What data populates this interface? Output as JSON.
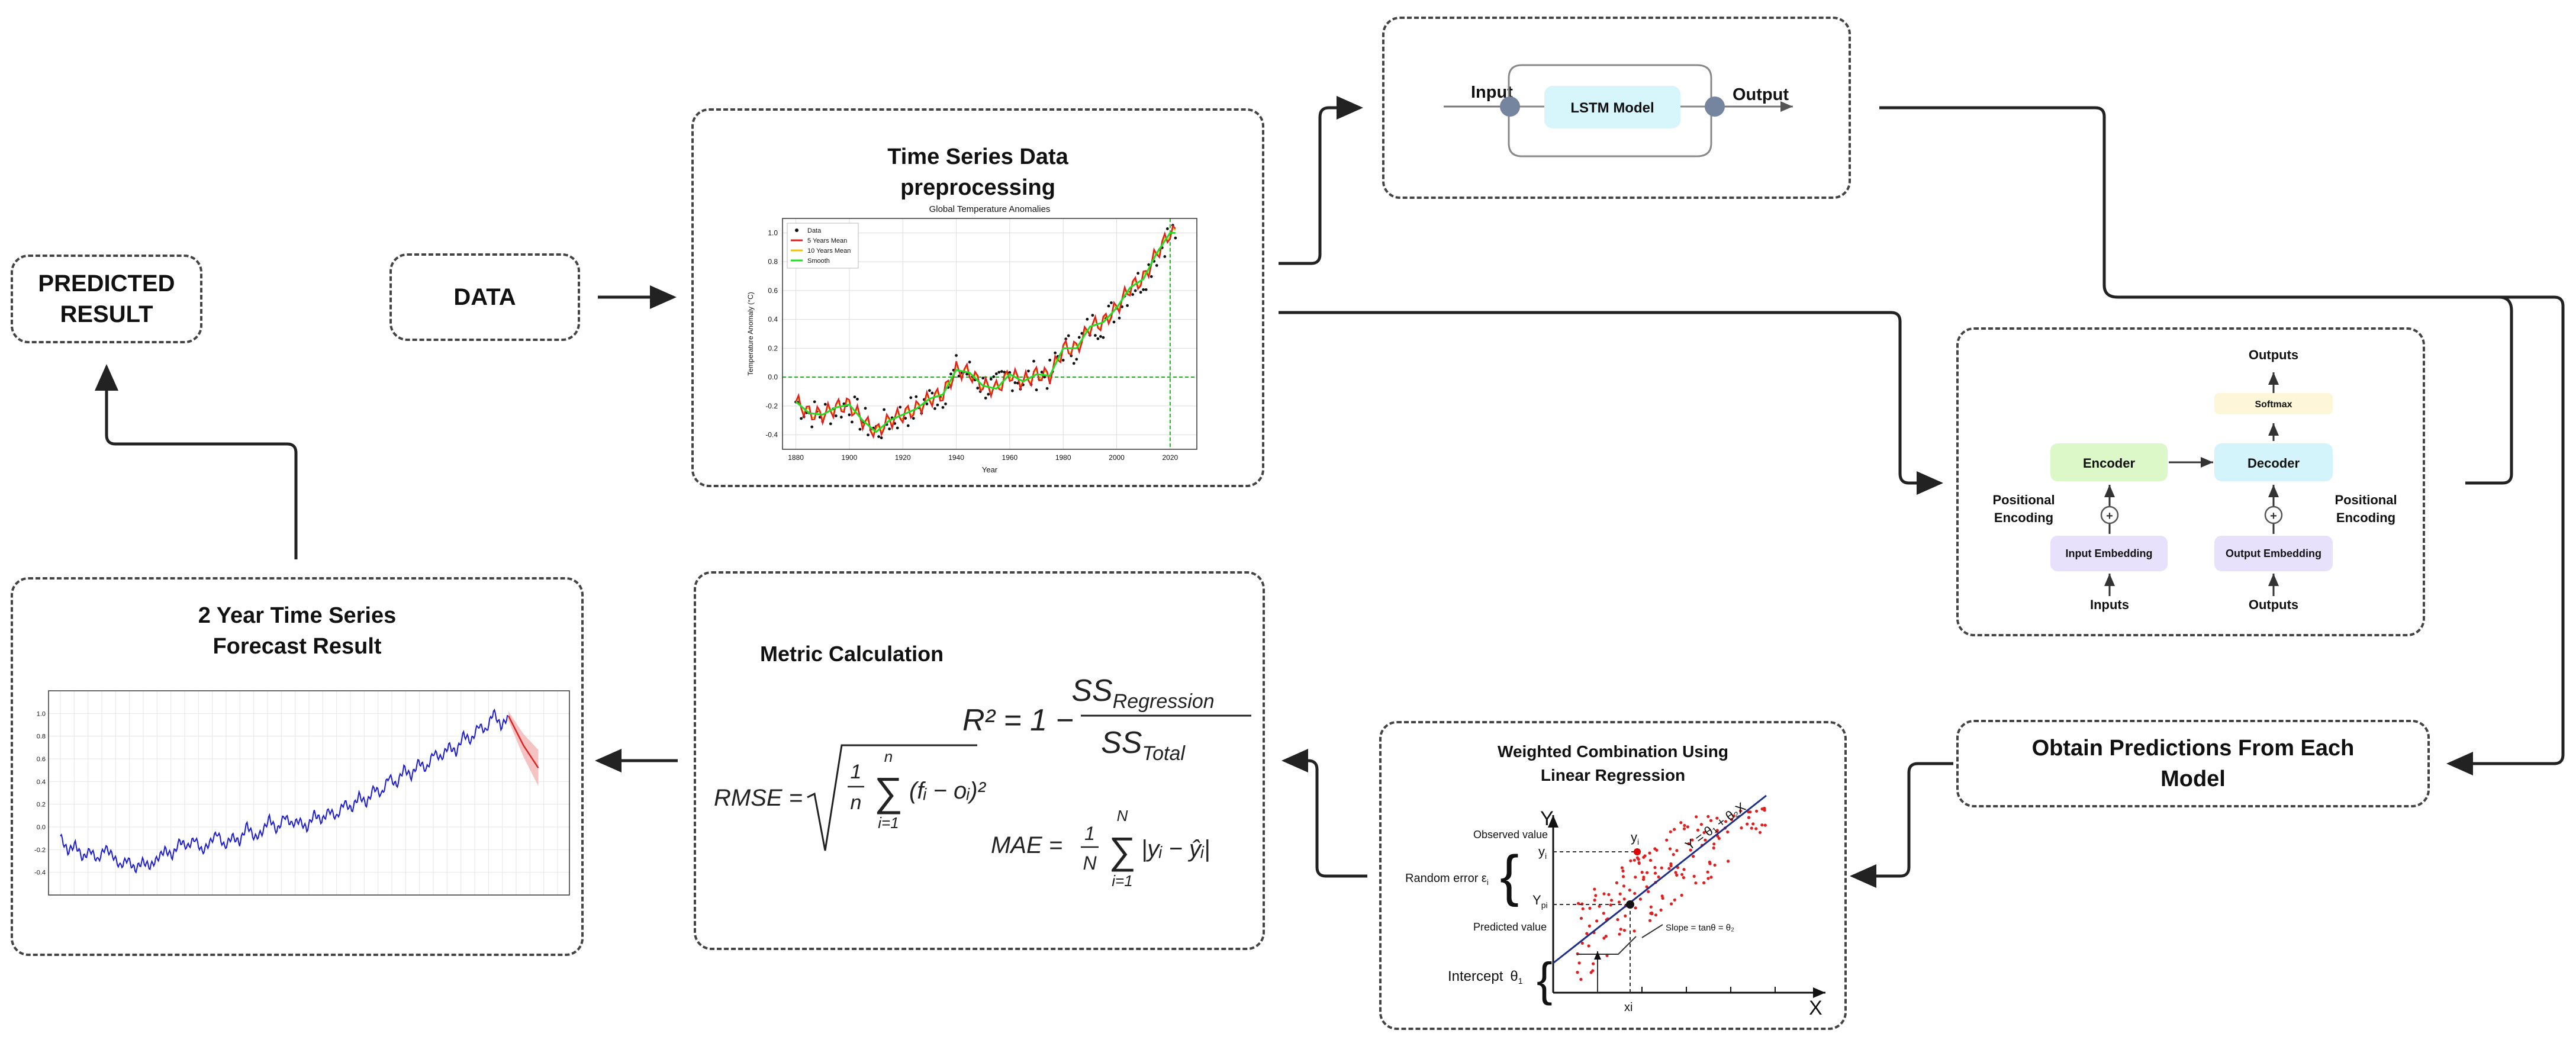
{
  "boxes": {
    "predicted_result": {
      "line1": "PREDICTED",
      "line2": "RESULT"
    },
    "data": {
      "label": "DATA"
    },
    "preprocessing": {
      "title_line1": "Time Series Data",
      "title_line2": "preprocessing"
    },
    "lstm": {
      "input": "Input",
      "output": "Output",
      "model": "LSTM Model"
    },
    "transformer": {
      "outputs_top": "Outputs",
      "softmax": "Softmax",
      "encoder": "Encoder",
      "decoder": "Decoder",
      "pos_enc_left_1": "Positional",
      "pos_enc_left_2": "Encoding",
      "pos_enc_right_1": "Positional",
      "pos_enc_right_2": "Encoding",
      "input_embedding": "Input Embedding",
      "output_embedding": "Output Embedding",
      "inputs": "Inputs",
      "outputs_bottom": "Outputs"
    },
    "obtain": {
      "line1": "Obtain Predictions From Each",
      "line2": "Model"
    },
    "regression": {
      "title_line1": "Weighted Combination Using",
      "title_line2": "Linear Regression",
      "axis_y": "Y",
      "axis_x": "X",
      "observed_value": "Observed value",
      "random_error": "Random error ε",
      "random_error_sub": "i",
      "predicted_value": "Predicted value",
      "intercept": "Intercept",
      "intercept_symbol": "θ",
      "intercept_sub": "1",
      "yi": "y",
      "yi_sub": "i",
      "ypi": "Y",
      "ypi_sub": "pi",
      "xi": "xi",
      "equation": "Y = θ₁ + θ₂X",
      "slope": "Slope = tanθ = θ₂"
    },
    "metric": {
      "title": "Metric Calculation",
      "r2_left": "R² = 1 −",
      "r2_num": "SS",
      "r2_num_sub": "Regression",
      "r2_den": "SS",
      "r2_den_sub": "Total",
      "rmse_label": "RMSE =",
      "rmse_frac_num": "1",
      "rmse_frac_den": "n",
      "rmse_sum_top": "n",
      "rmse_sum_bottom": "i=1",
      "rmse_body": "(fᵢ − oᵢ)²",
      "mae_label": "MAE =",
      "mae_frac_num": "1",
      "mae_frac_den": "N",
      "mae_sum_top": "N",
      "mae_sum_bottom": "i=1",
      "mae_body": "|yᵢ − ŷᵢ|"
    },
    "forecast": {
      "title_line1": "2 Year Time Series",
      "title_line2": "Forecast Result"
    }
  },
  "chart_data": [
    {
      "type": "line",
      "title": "Global Temperature Anomalies",
      "xlabel": "Year",
      "ylabel": "Temperature Anomaly (°C)",
      "xlim": [
        1875,
        2030
      ],
      "ylim": [
        -0.5,
        1.1
      ],
      "x_ticks": [
        "1880",
        "1900",
        "1920",
        "1940",
        "1960",
        "1980",
        "2000",
        "2020"
      ],
      "y_ticks": [
        "-0.4",
        "-0.2",
        "0.0",
        "0.2",
        "0.4",
        "0.6",
        "0.8",
        "1.0"
      ],
      "grid": true,
      "legend_position": "top-left",
      "legend": [
        "Data",
        "5 Years Mean",
        "10 Years Mean",
        "Smooth"
      ],
      "series": [
        {
          "name": "Smooth",
          "x": [
            1880,
            1885,
            1890,
            1895,
            1900,
            1905,
            1910,
            1915,
            1920,
            1925,
            1930,
            1935,
            1940,
            1945,
            1950,
            1955,
            1960,
            1965,
            1970,
            1975,
            1980,
            1985,
            1990,
            1995,
            2000,
            2005,
            2010,
            2015,
            2020
          ],
          "values": [
            -0.17,
            -0.25,
            -0.26,
            -0.21,
            -0.19,
            -0.3,
            -0.38,
            -0.3,
            -0.26,
            -0.22,
            -0.15,
            -0.12,
            0.05,
            0.03,
            -0.06,
            -0.08,
            0.02,
            -0.03,
            0.02,
            0.01,
            0.2,
            0.2,
            0.35,
            0.38,
            0.48,
            0.62,
            0.68,
            0.86,
            1.0
          ]
        }
      ],
      "annotations": [
        "dashed green horizontal line at 0.0",
        "dashed green vertical line at 2020"
      ]
    },
    {
      "type": "line",
      "title": "",
      "ylim": [
        -0.6,
        1.2
      ],
      "y_ticks": [
        "-0.4",
        "-0.2",
        "0.0",
        "0.2",
        "0.4",
        "0.6",
        "0.8",
        "1.0"
      ],
      "grid": true,
      "series": [
        {
          "name": "",
          "values": [
            -0.08,
            -0.22,
            -0.15,
            -0.28,
            -0.2,
            -0.3,
            -0.18,
            -0.25,
            -0.35,
            -0.28,
            -0.38,
            -0.3,
            -0.35,
            -0.28,
            -0.2,
            -0.26,
            -0.12,
            -0.18,
            -0.1,
            -0.22,
            -0.14,
            -0.05,
            -0.18,
            -0.08,
            -0.14,
            0.02,
            -0.1,
            -0.05,
            0.08,
            -0.04,
            0.1,
            0.02,
            0.06,
            -0.02,
            0.12,
            0.05,
            0.15,
            0.08,
            0.22,
            0.15,
            0.28,
            0.2,
            0.35,
            0.28,
            0.45,
            0.36,
            0.52,
            0.44,
            0.58,
            0.5,
            0.66,
            0.6,
            0.72,
            0.65,
            0.82,
            0.75,
            0.9,
            0.84,
            1.02,
            0.88,
            0.98
          ]
        },
        {
          "name": "",
          "values": [
            0.98,
            0.85,
            0.72,
            0.62,
            0.52
          ]
        }
      ]
    }
  ]
}
